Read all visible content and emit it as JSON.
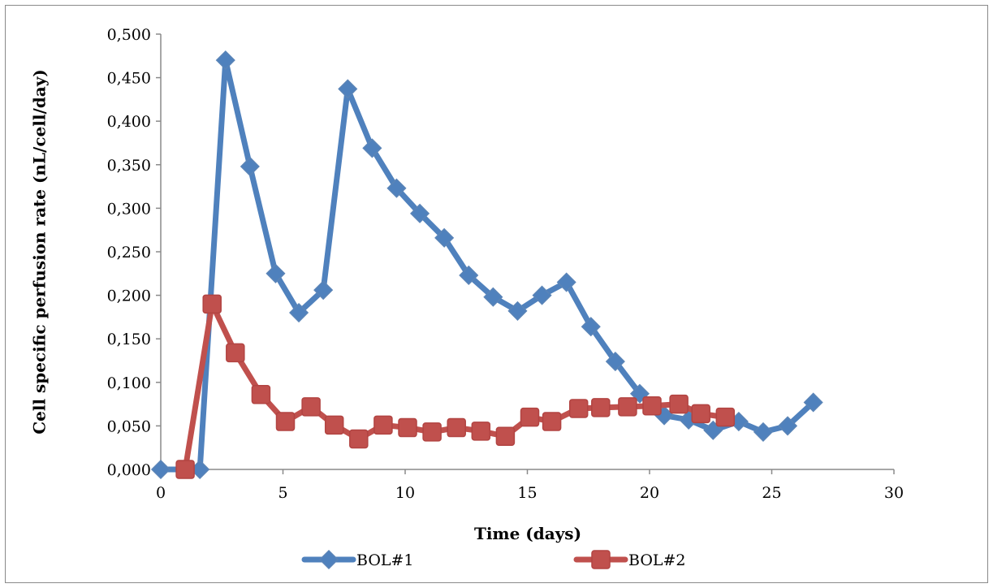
{
  "chart_data": {
    "type": "line",
    "xlabel": "Time (days)",
    "ylabel": "Cell specific perfusion rate (nL/cell/day)",
    "xlim": [
      0,
      30
    ],
    "ylim": [
      0,
      0.5
    ],
    "x_ticks": [
      "0",
      "5",
      "10",
      "15",
      "20",
      "25",
      "30"
    ],
    "y_ticks": [
      "0,000",
      "0,050",
      "0,100",
      "0,150",
      "0,200",
      "0,250",
      "0,300",
      "0,350",
      "0,400",
      "0,450",
      "0,500"
    ],
    "grid": false,
    "legend_position": "bottom",
    "series": [
      {
        "name": "BOL#1",
        "color": "#4f81bd",
        "marker": "diamond",
        "x": [
          0,
          1.6,
          2.65,
          3.65,
          4.7,
          5.65,
          6.65,
          7.65,
          8.65,
          9.65,
          10.6,
          11.6,
          12.6,
          13.6,
          14.6,
          15.6,
          16.6,
          17.6,
          18.6,
          19.6,
          20.6,
          21.6,
          22.6,
          23.65,
          24.65,
          25.65,
          26.7
        ],
        "y": [
          0.0,
          0.0,
          0.47,
          0.348,
          0.225,
          0.18,
          0.206,
          0.437,
          0.369,
          0.323,
          0.294,
          0.266,
          0.223,
          0.198,
          0.182,
          0.2,
          0.215,
          0.164,
          0.124,
          0.087,
          0.062,
          0.057,
          0.045,
          0.055,
          0.043,
          0.05,
          0.077
        ]
      },
      {
        "name": "BOL#2",
        "color": "#c0504d",
        "marker": "square",
        "x": [
          1.0,
          2.1,
          3.05,
          4.1,
          5.1,
          6.15,
          7.1,
          8.1,
          9.1,
          10.1,
          11.1,
          12.1,
          13.1,
          14.1,
          15.1,
          16.0,
          17.1,
          18.0,
          19.1,
          20.1,
          21.2,
          22.1,
          23.1
        ],
        "y": [
          0.0,
          0.19,
          0.134,
          0.086,
          0.055,
          0.072,
          0.051,
          0.035,
          0.051,
          0.048,
          0.043,
          0.048,
          0.044,
          0.038,
          0.06,
          0.055,
          0.07,
          0.071,
          0.072,
          0.073,
          0.075,
          0.064,
          0.06
        ]
      }
    ]
  }
}
